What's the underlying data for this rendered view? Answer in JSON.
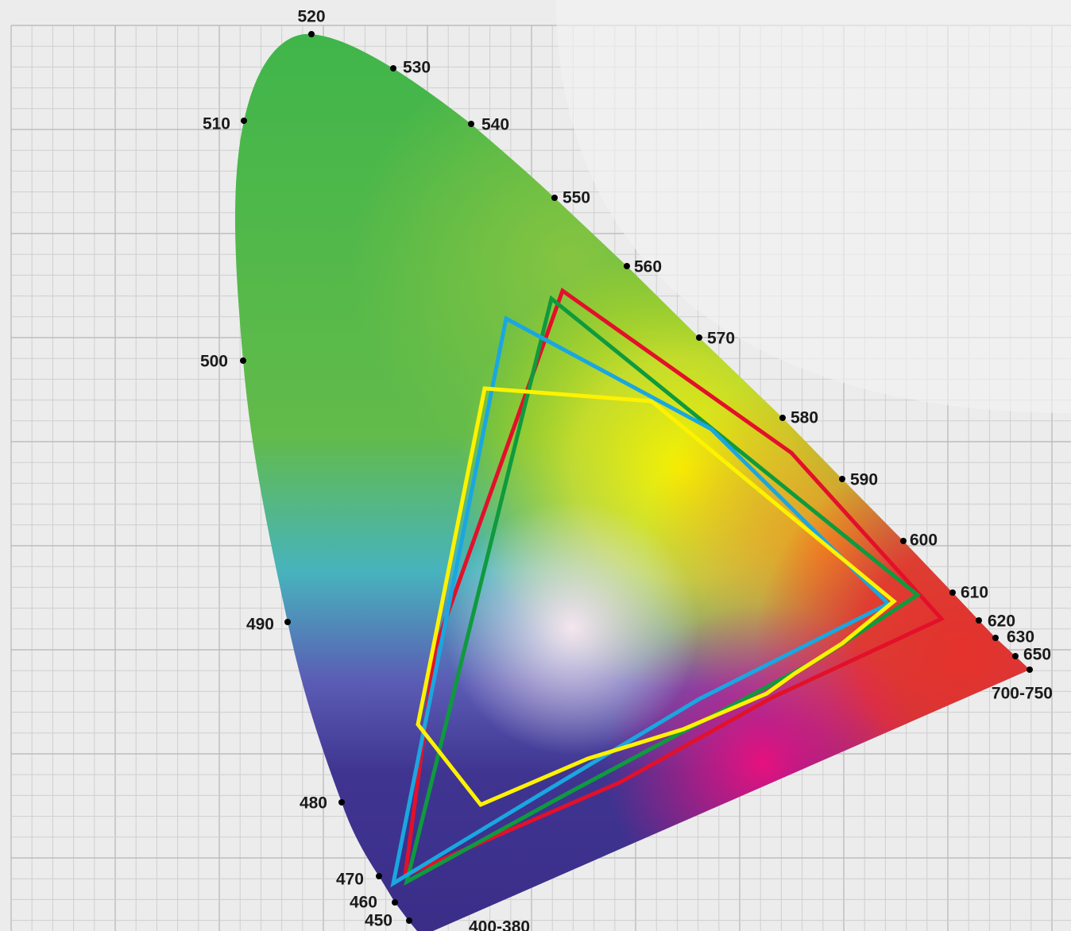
{
  "wavelengths": [
    "520",
    "530",
    "540",
    "550",
    "560",
    "570",
    "580",
    "590",
    "600",
    "610",
    "620",
    "630",
    "650",
    "700-750",
    "510",
    "500",
    "490",
    "480",
    "470",
    "460",
    "450",
    "400-380"
  ]
}
